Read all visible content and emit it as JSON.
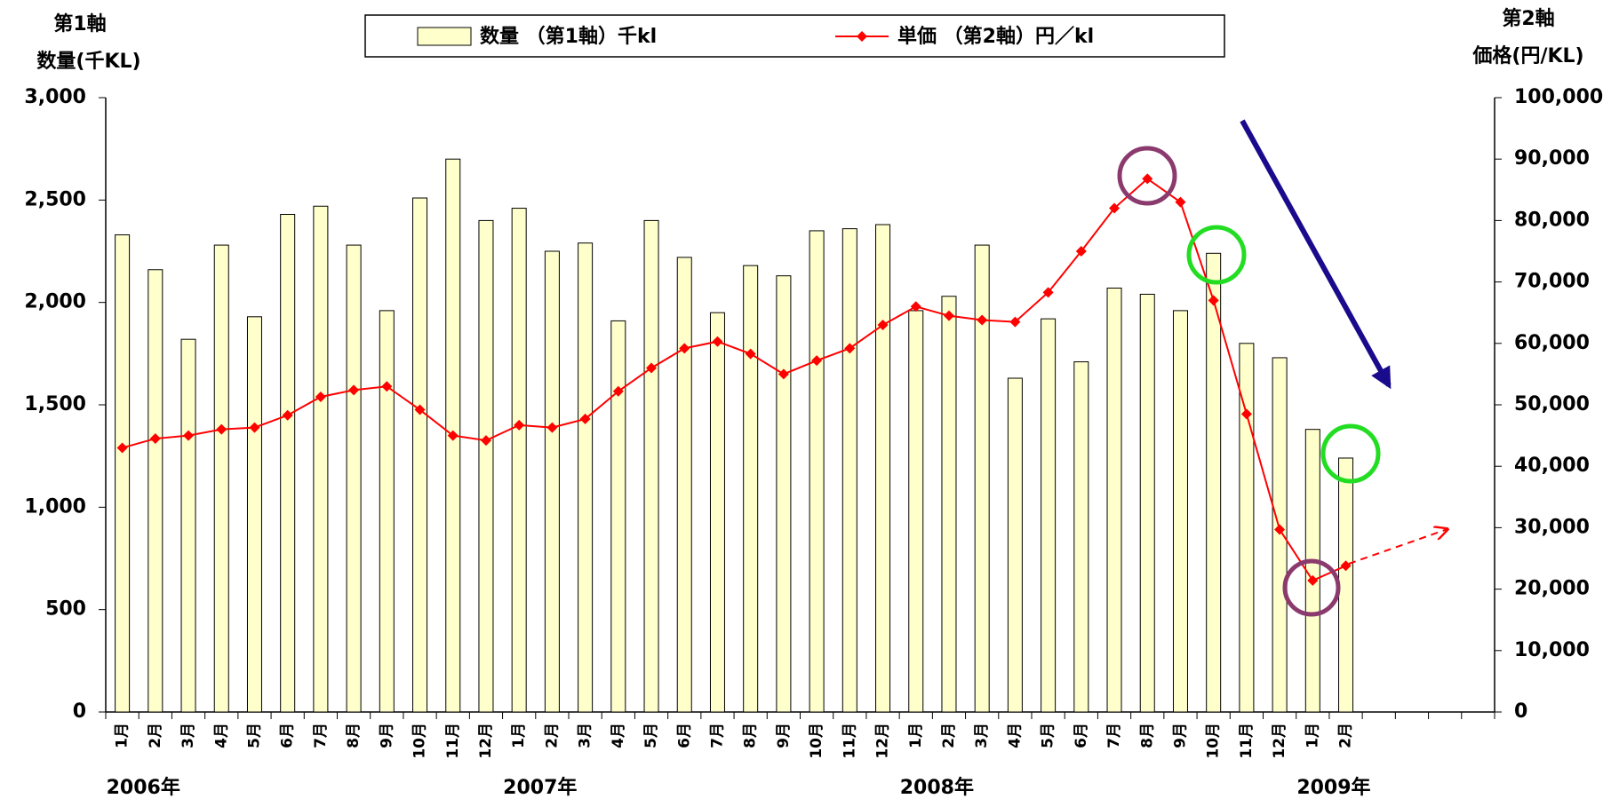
{
  "chart_data": {
    "type": "bar_line",
    "y_axis_label_top": "第1軸",
    "y_axis_label": "数量(千KL)",
    "y2_axis_label_top": "第2軸",
    "y2_axis_label": "価格(円/KL)",
    "categories": [
      "1月",
      "2月",
      "3月",
      "4月",
      "5月",
      "6月",
      "7月",
      "8月",
      "9月",
      "10月",
      "11月",
      "12月",
      "1月",
      "2月",
      "3月",
      "4月",
      "5月",
      "6月",
      "7月",
      "8月",
      "9月",
      "10月",
      "11月",
      "12月",
      "1月",
      "2月",
      "3月",
      "4月",
      "5月",
      "6月",
      "7月",
      "8月",
      "9月",
      "10月",
      "11月",
      "12月",
      "1月",
      "2月",
      null,
      null,
      null,
      null
    ],
    "year_labels": [
      "2006年",
      "2007年",
      "2008年",
      "2009年"
    ],
    "series": [
      {
        "name": "数量 （第1軸）千kl",
        "type": "bar",
        "color": "#ffffcc",
        "values": [
          2330,
          2160,
          1820,
          2280,
          1930,
          2430,
          2470,
          2280,
          1960,
          2510,
          2700,
          2400,
          2460,
          2250,
          2290,
          1910,
          2400,
          2220,
          1950,
          2180,
          2130,
          2350,
          2360,
          2380,
          1960,
          2030,
          2280,
          1630,
          1920,
          1710,
          2070,
          2040,
          1960,
          2240,
          1800,
          1730,
          1380,
          1240,
          null,
          null,
          null,
          null
        ]
      },
      {
        "name": "単価 （第2軸）円／kl",
        "type": "line",
        "axis": "y2",
        "color": "#ff0000",
        "values": [
          43000,
          44500,
          45000,
          46000,
          46300,
          48300,
          51300,
          52400,
          53000,
          49200,
          45000,
          44200,
          46700,
          46300,
          47700,
          52200,
          56000,
          59200,
          60300,
          58300,
          55000,
          57200,
          59200,
          63000,
          66000,
          64500,
          63800,
          63500,
          68300,
          75000,
          82000,
          86800,
          83000,
          67000,
          48500,
          29700,
          21400,
          23800,
          null,
          null,
          null,
          null
        ]
      }
    ],
    "ylim": [
      0,
      3000
    ],
    "yticks": [
      {
        "value": 3000,
        "label": "3,000"
      },
      {
        "value": 2500,
        "label": "2,500"
      },
      {
        "value": 2000,
        "label": "2,000"
      },
      {
        "value": 1500,
        "label": "1,500"
      },
      {
        "value": 1000,
        "label": "1,000"
      },
      500,
      0
    ],
    "y2lim": [
      0,
      100000
    ],
    "y2ticks": [
      {
        "value": 100000,
        "label": "100,000"
      },
      {
        "value": 90000,
        "label": "90,000"
      },
      {
        "value": 80000,
        "label": "80,000"
      },
      {
        "value": 70000,
        "label": "70,000"
      },
      {
        "value": 60000,
        "label": "60,000"
      },
      {
        "value": 50000,
        "label": "50,000"
      },
      {
        "value": 40000,
        "label": "40,000"
      },
      {
        "value": 30000,
        "label": "30,000"
      },
      {
        "value": 20000,
        "label": "20,000"
      },
      {
        "value": 10000,
        "label": "10,000"
      },
      0
    ],
    "grid": false
  }
}
